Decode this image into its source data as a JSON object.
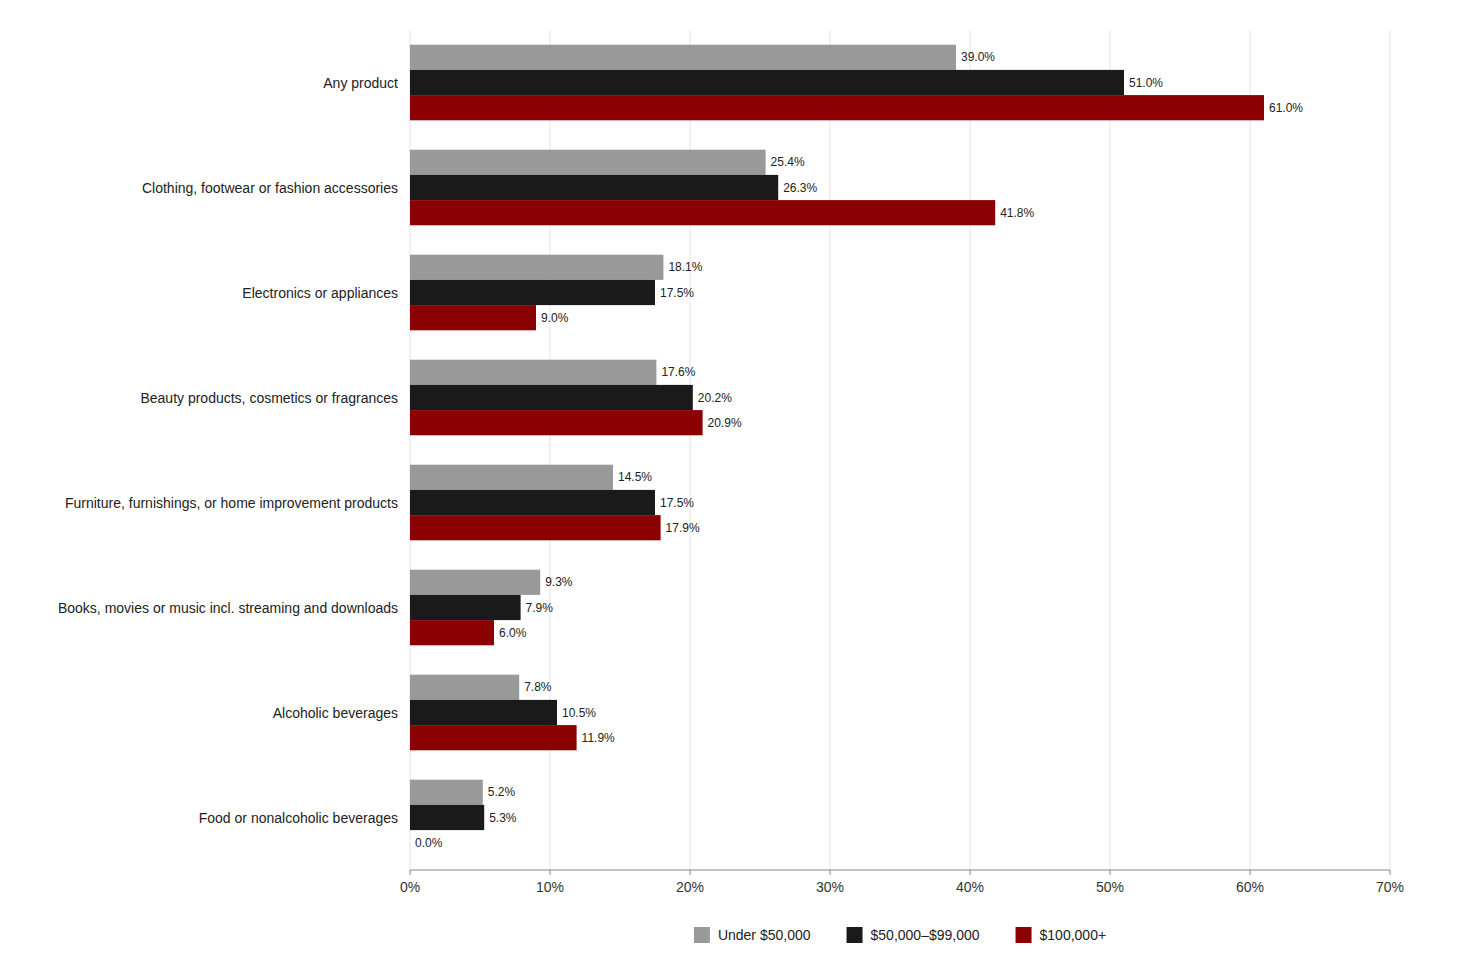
{
  "chart_data": {
    "type": "bar",
    "orientation": "horizontal",
    "categories": [
      "Any product",
      "Clothing, footwear or fashion accessories",
      "Electronics or appliances",
      "Beauty products, cosmetics or fragrances",
      "Furniture, furnishings, or home improvement products",
      "Books, movies or music incl. streaming and downloads",
      "Alcoholic beverages",
      "Food or nonalcoholic beverages"
    ],
    "series": [
      {
        "name": "Under $50,000",
        "color": "#999999",
        "values": [
          39.0,
          25.4,
          18.1,
          17.6,
          14.5,
          9.3,
          7.8,
          5.2
        ],
        "value_labels": [
          "39.0%",
          "25.4%",
          "18.1%",
          "17.6%",
          "14.5%",
          "9.3%",
          "7.8%",
          "5.2%"
        ]
      },
      {
        "name": "$50,000–$99,000",
        "color": "#1a1a1a",
        "values": [
          51.0,
          26.3,
          17.5,
          20.2,
          17.5,
          7.9,
          10.5,
          5.3
        ],
        "value_labels": [
          "51.0%",
          "26.3%",
          "17.5%",
          "20.2%",
          "17.5%",
          "7.9%",
          "10.5%",
          "5.3%"
        ]
      },
      {
        "name": "$100,000+",
        "color": "#8b0000",
        "values": [
          61.0,
          41.8,
          9.0,
          20.9,
          17.9,
          6.0,
          11.9,
          0.0
        ],
        "value_labels": [
          "61.0%",
          "41.8%",
          "9.0%",
          "20.9%",
          "17.9%",
          "6.0%",
          "11.9%",
          "0.0%"
        ]
      }
    ],
    "xlim": [
      0,
      70
    ],
    "xticks": [
      {
        "value": 0,
        "label": "0%"
      },
      {
        "value": 10,
        "label": "10%"
      },
      {
        "value": 20,
        "label": "20%"
      },
      {
        "value": 30,
        "label": "30%"
      },
      {
        "value": 40,
        "label": "40%"
      },
      {
        "value": 50,
        "label": "50%"
      },
      {
        "value": 60,
        "label": "60%"
      },
      {
        "value": 70,
        "label": "70%"
      }
    ],
    "grid": true,
    "data_labels": true,
    "legend": "bottom"
  }
}
